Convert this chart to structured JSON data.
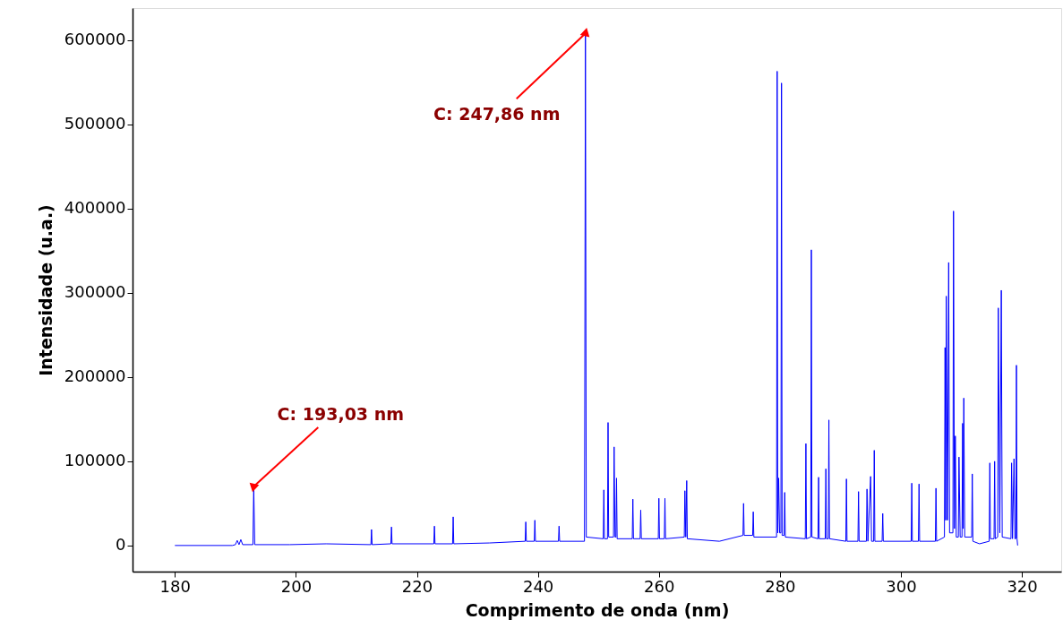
{
  "chart_data": {
    "type": "line",
    "xlabel": "Comprimento de onda (nm)",
    "ylabel": "Intensidade (u.a.)",
    "xlim": [
      173,
      326.5
    ],
    "ylim": [
      -31000,
      638000
    ],
    "xticks": [
      180,
      200,
      220,
      240,
      260,
      280,
      300,
      320
    ],
    "yticks": [
      0,
      100000,
      200000,
      300000,
      400000,
      500000,
      600000
    ],
    "grid": false,
    "marker": "none",
    "line_style": "solid",
    "annotations": [
      {
        "text": "C: 193,03 nm",
        "x": 193.03,
        "y": 70000
      },
      {
        "text": "C: 247,86 nm",
        "x": 247.86,
        "y": 608000
      }
    ],
    "series": [
      {
        "color": "#0000ff",
        "x": [
          180,
          189.5,
          190.0,
          190.3,
          190.6,
          190.9,
          191.2,
          192.9,
          193.03,
          193.2,
          199,
          205,
          212.4,
          212.5,
          212.6,
          215.7,
          215.8,
          215.9,
          222.8,
          222.9,
          223.0,
          225.9,
          226.0,
          226.1,
          232,
          237.9,
          238.0,
          238.1,
          239.4,
          239.5,
          239.6,
          243.4,
          243.5,
          243.6,
          247.7,
          247.86,
          248.0,
          250.8,
          250.9,
          251.0,
          251.5,
          251.6,
          251.7,
          252.5,
          252.6,
          252.75,
          252.9,
          253.0,
          253.1,
          255.6,
          255.7,
          255.8,
          256.9,
          257.0,
          257.1,
          259.9,
          260.0,
          260.1,
          260.9,
          261.0,
          261.1,
          264.2,
          264.3,
          264.45,
          264.6,
          264.7,
          270,
          273.9,
          274.0,
          274.1,
          275.5,
          275.6,
          275.7,
          279.45,
          279.55,
          279.65,
          279.8,
          279.95,
          280.17,
          280.27,
          280.37,
          280.7,
          280.8,
          280.9,
          284.2,
          284.3,
          284.4,
          285.1,
          285.2,
          285.3,
          286.3,
          286.4,
          286.5,
          287.5,
          287.6,
          287.7,
          288.0,
          288.1,
          288.2,
          290.9,
          291.0,
          291.1,
          292.9,
          293.0,
          293.1,
          294.3,
          294.4,
          294.55,
          295.0,
          295.15,
          295.5,
          295.6,
          295.7,
          296.9,
          297.0,
          297.1,
          301.7,
          301.8,
          301.9,
          302.9,
          303.0,
          303.1,
          305.7,
          305.8,
          305.9,
          307.2,
          307.3,
          307.4,
          307.5,
          307.7,
          307.9,
          308.05,
          308.6,
          308.7,
          308.85,
          309.0,
          309.15,
          309.5,
          309.6,
          309.8,
          310.1,
          310.2,
          310.3,
          310.4,
          310.55,
          311.7,
          311.8,
          311.9,
          313,
          314.6,
          314.7,
          314.8,
          315.4,
          315.5,
          315.6,
          316.0,
          316.1,
          316.35,
          316.6,
          316.75,
          318.2,
          318.3,
          318.45,
          318.7,
          318.85,
          319.0,
          319.1,
          319.2,
          319.3
        ],
        "values": [
          0,
          0,
          1000,
          6000,
          1000,
          7000,
          1000,
          1000,
          70000,
          1000,
          1000,
          2000,
          1000,
          19000,
          1000,
          2000,
          22000,
          2000,
          2000,
          23000,
          2000,
          2000,
          34000,
          2000,
          3000,
          5000,
          28000,
          5000,
          5000,
          30000,
          5000,
          5000,
          23000,
          5000,
          5000,
          608000,
          10000,
          8000,
          66000,
          8000,
          8000,
          146000,
          10000,
          10000,
          117000,
          10000,
          10000,
          80000,
          8000,
          8000,
          55000,
          8000,
          8000,
          42000,
          8000,
          8000,
          56000,
          8000,
          8000,
          56000,
          8000,
          10000,
          65000,
          10000,
          77000,
          8000,
          5000,
          12000,
          50000,
          12000,
          12000,
          40000,
          10000,
          10000,
          563000,
          15000,
          80000,
          15000,
          15000,
          549000,
          12000,
          12000,
          63000,
          10000,
          8000,
          121000,
          8000,
          10000,
          351000,
          10000,
          8000,
          81000,
          8000,
          8000,
          91000,
          8000,
          8000,
          149000,
          8000,
          5000,
          79000,
          5000,
          5000,
          64000,
          5000,
          5000,
          67000,
          5000,
          82000,
          5000,
          5000,
          113000,
          5000,
          5000,
          38000,
          5000,
          5000,
          74000,
          5000,
          5000,
          73000,
          5000,
          5000,
          68000,
          5000,
          10000,
          235000,
          30000,
          296000,
          30000,
          336000,
          15000,
          15000,
          397000,
          20000,
          130000,
          10000,
          10000,
          105000,
          10000,
          10000,
          145000,
          20000,
          175000,
          10000,
          10000,
          85000,
          5000,
          2000,
          5000,
          98000,
          8000,
          8000,
          100000,
          8000,
          10000,
          282000,
          15000,
          303000,
          10000,
          8000,
          98000,
          8000,
          103000,
          8000,
          8000,
          214000,
          8000,
          0
        ]
      }
    ]
  }
}
